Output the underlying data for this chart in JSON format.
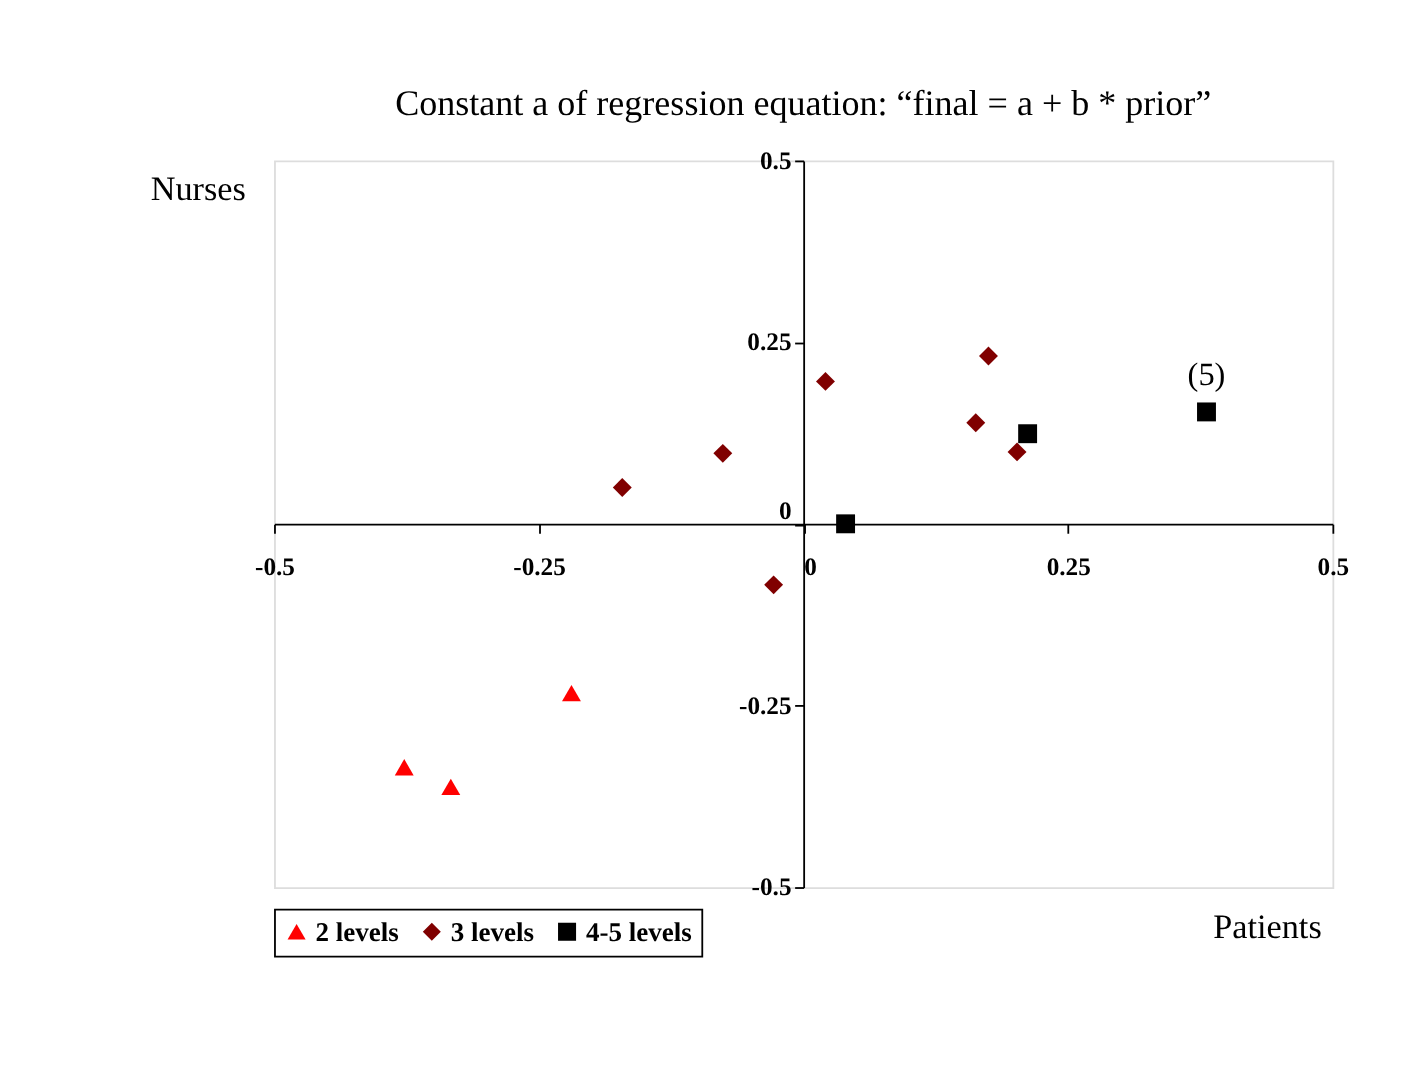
{
  "chart_data": {
    "type": "scatter",
    "title": "Constant a of regression equation: “final = a + b * prior”",
    "xlabel": "Patients",
    "ylabel": "Nurses",
    "xlim": [
      -0.5,
      0.5
    ],
    "ylim": [
      -0.5,
      0.5
    ],
    "xticks": [
      -0.5,
      -0.25,
      0,
      0.25,
      0.5
    ],
    "yticks": [
      -0.5,
      -0.25,
      0,
      0.25,
      0.5
    ],
    "grid": false,
    "legend": "bottom",
    "series": [
      {
        "name": "2 levels",
        "color": "#ff0000",
        "marker": "triangle",
        "x": [
          -0.377,
          -0.333,
          -0.219
        ],
        "values": [
          -0.335,
          -0.362,
          -0.233
        ]
      },
      {
        "name": "3 levels",
        "color": "#800000",
        "marker": "diamond",
        "x": [
          -0.171,
          -0.076,
          0.021,
          -0.028,
          0.163,
          0.175,
          0.202
        ],
        "values": [
          0.05,
          0.097,
          0.196,
          -0.084,
          0.139,
          0.231,
          0.099
        ]
      },
      {
        "name": "4-5 levels",
        "color": "#000000",
        "marker": "square",
        "x": [
          0.04,
          0.212,
          0.381
        ],
        "values": [
          0.0,
          0.124,
          0.154
        ]
      }
    ],
    "annotations": [
      {
        "text": "(5)",
        "x": 0.381,
        "y": 0.154
      }
    ]
  }
}
